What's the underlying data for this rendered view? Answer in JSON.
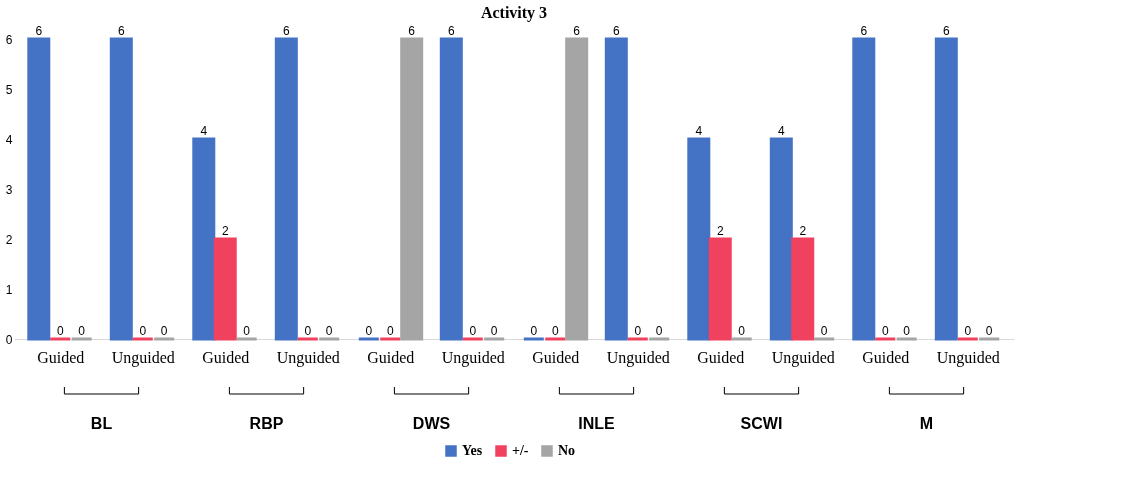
{
  "chart_data": {
    "type": "bar",
    "title": "Activity 3",
    "categories": [
      "Guided",
      "Unguided",
      "Guided",
      "Unguided",
      "Guided",
      "Unguided",
      "Guided",
      "Unguided",
      "Guided",
      "Unguided",
      "Guided",
      "Unguided"
    ],
    "series": [
      {
        "name": "Yes",
        "color": "#4472c4",
        "values": [
          6,
          6,
          4,
          6,
          0,
          6,
          0,
          6,
          4,
          4,
          6,
          6
        ]
      },
      {
        "name": "+/-",
        "color": "#f0425f",
        "values": [
          0,
          0,
          2,
          0,
          0,
          0,
          0,
          0,
          2,
          2,
          0,
          0
        ]
      },
      {
        "name": "No",
        "color": "#a5a5a5",
        "values": [
          0,
          0,
          0,
          0,
          6,
          0,
          6,
          0,
          0,
          0,
          0,
          0
        ]
      }
    ],
    "annotations": [
      "BL",
      "RBP",
      "DWS",
      "INLE",
      "SCWI",
      "M"
    ],
    "ylim": [
      0,
      6
    ],
    "yticks": [
      0,
      1,
      2,
      3,
      4,
      5,
      6
    ],
    "grid": false,
    "legend": "bottom",
    "data_labels": true
  }
}
